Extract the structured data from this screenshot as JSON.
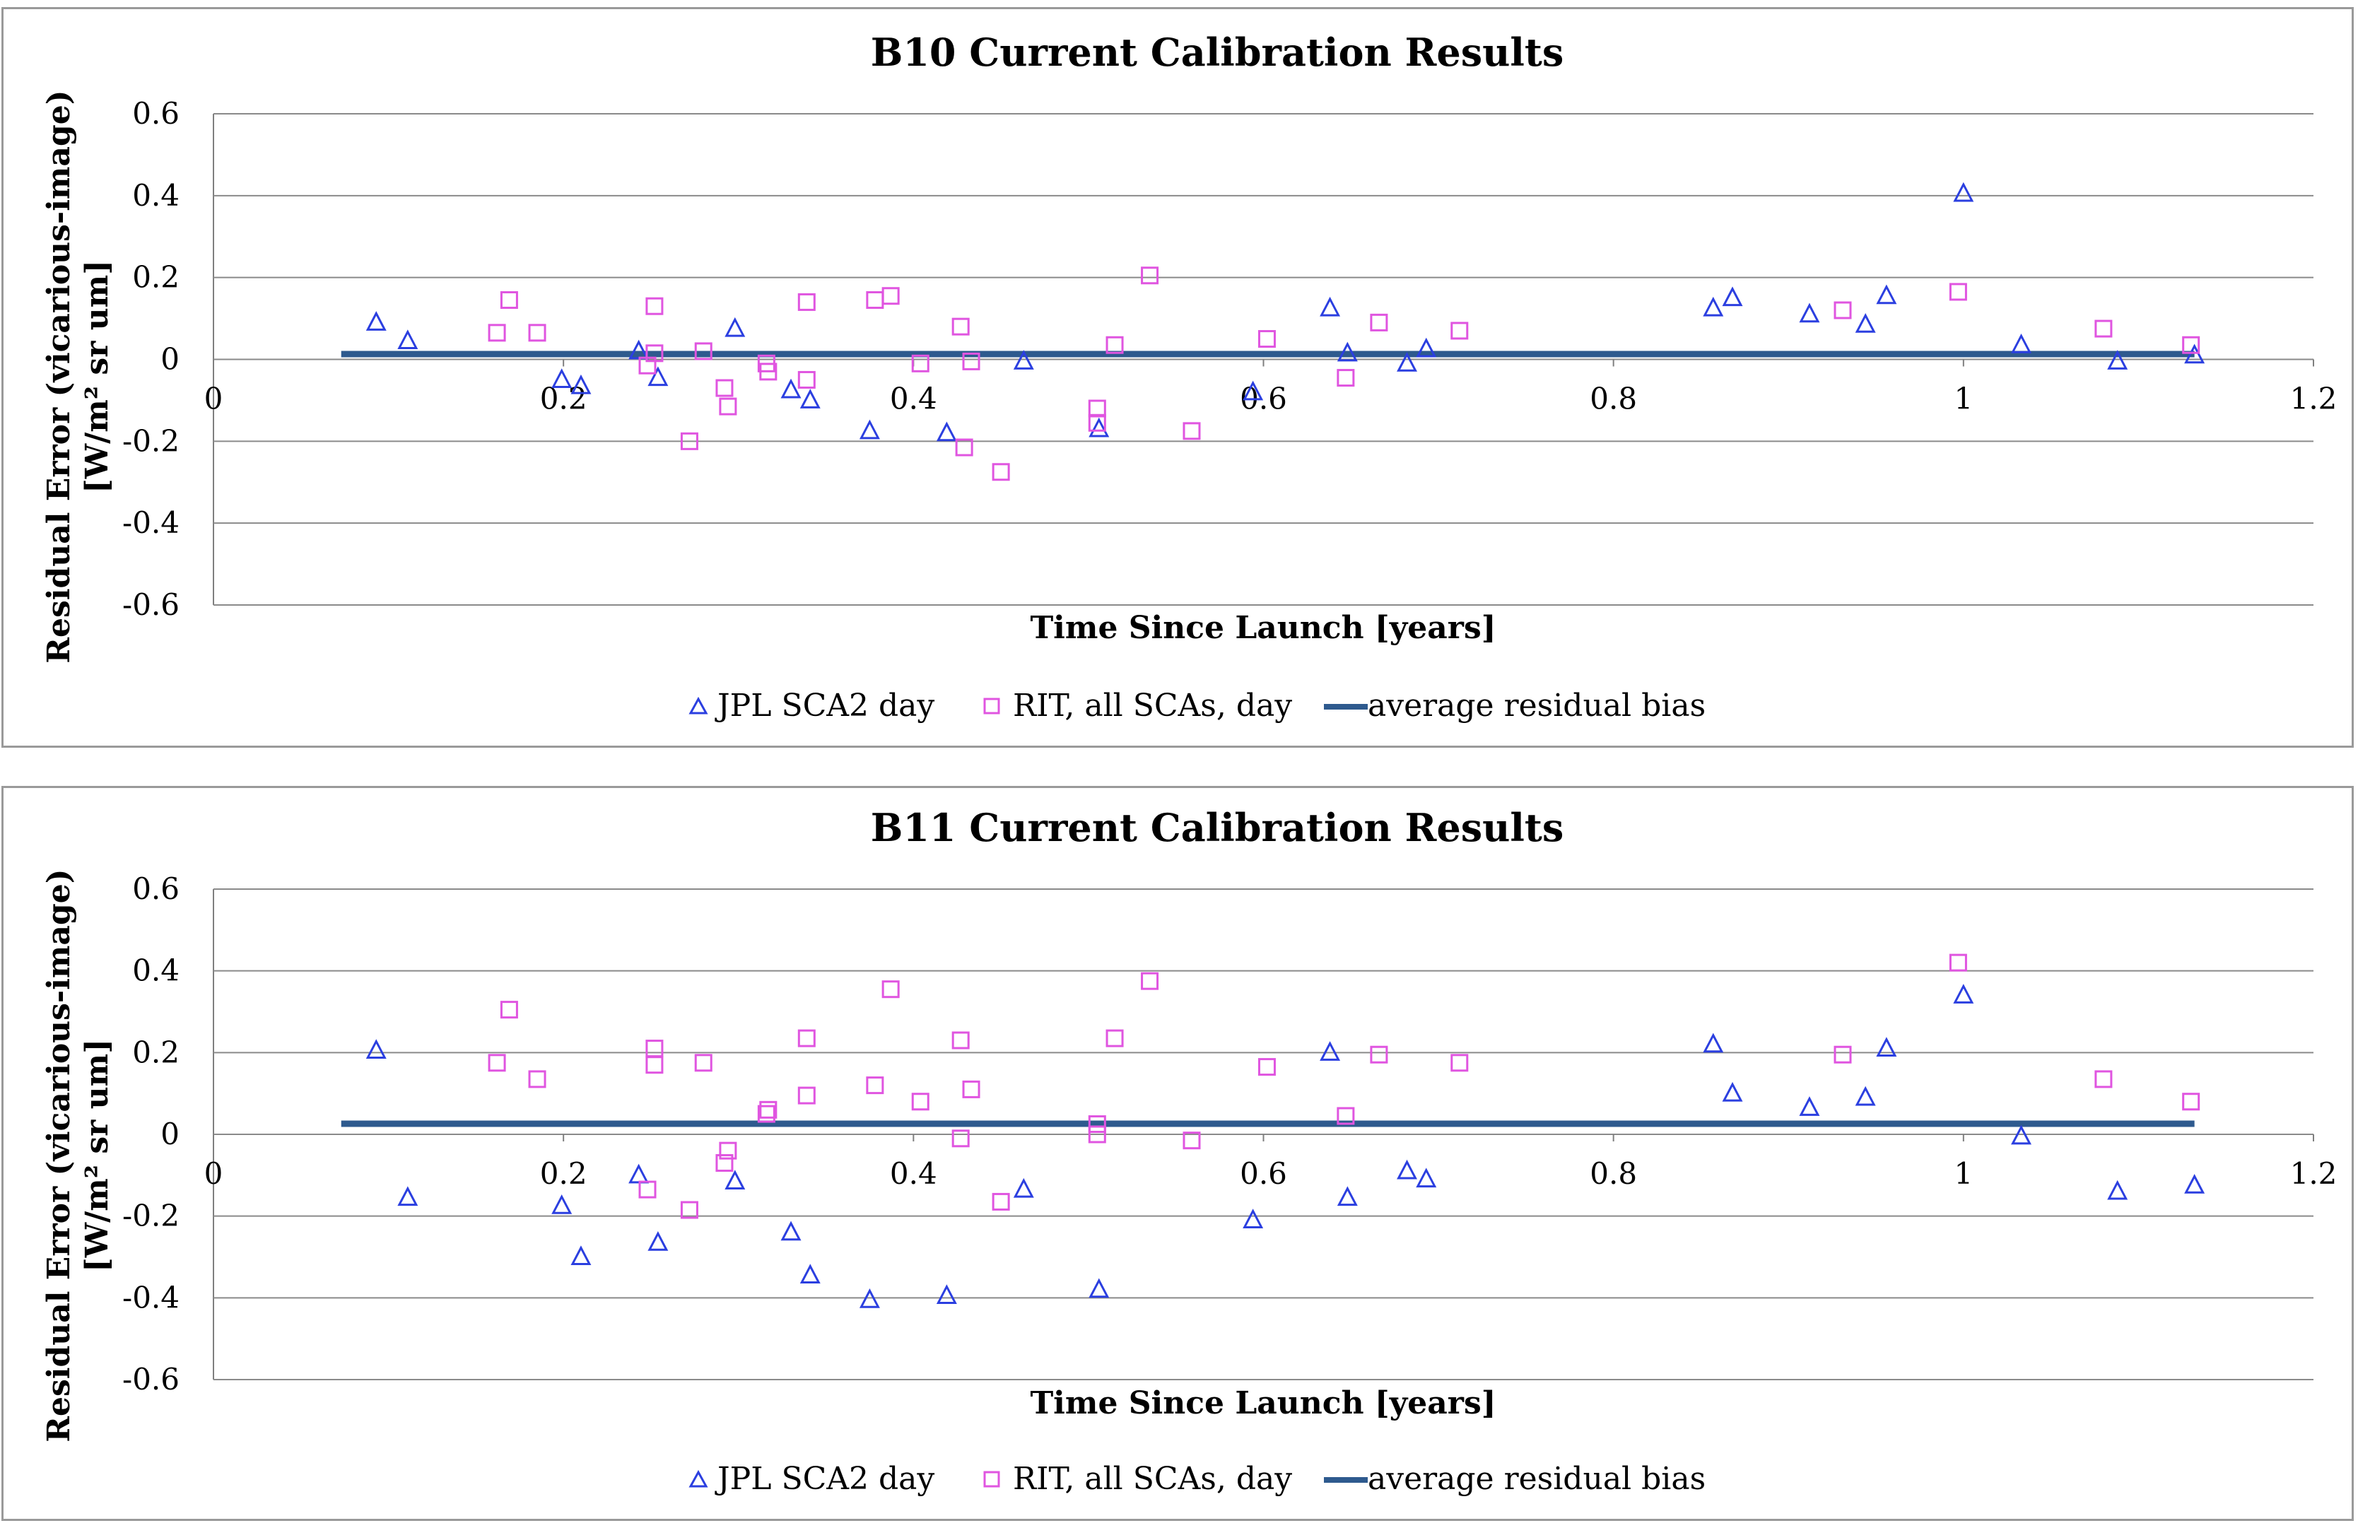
{
  "chart_data": [
    {
      "type": "scatter",
      "title": "B10 Current Calibration Results",
      "xlabel": "Time Since Launch [years]",
      "ylabel_line1": "Residual Error (vicarious-image)",
      "ylabel_line2": "[W/m² sr um]",
      "xlim": [
        0,
        1.2
      ],
      "ylim": [
        -0.6,
        0.6
      ],
      "x_ticks": [
        0,
        0.2,
        0.4,
        0.6,
        0.8,
        1,
        1.2
      ],
      "x_tick_labels": [
        "0",
        "0.2",
        "0.4",
        "0.6",
        "0.8",
        "1",
        "1.2"
      ],
      "y_ticks": [
        -0.6,
        -0.4,
        -0.2,
        0,
        0.2,
        0.4,
        0.6
      ],
      "y_tick_labels": [
        "-0.6",
        "-0.4",
        "-0.2",
        "0",
        "0.2",
        "0.4",
        "0.6"
      ],
      "grid": "horizontal",
      "legend_position": "bottom",
      "series": [
        {
          "name": "JPL SCA2 day",
          "marker": "triangle",
          "color": "#2b3fe0",
          "points": [
            [
              0.093,
              0.09
            ],
            [
              0.111,
              0.045
            ],
            [
              0.199,
              -0.05
            ],
            [
              0.21,
              -0.065
            ],
            [
              0.243,
              0.02
            ],
            [
              0.254,
              -0.045
            ],
            [
              0.298,
              0.075
            ],
            [
              0.33,
              -0.075
            ],
            [
              0.341,
              -0.1
            ],
            [
              0.375,
              -0.175
            ],
            [
              0.419,
              -0.18
            ],
            [
              0.463,
              -0.005
            ],
            [
              0.506,
              -0.17
            ],
            [
              0.594,
              -0.08
            ],
            [
              0.638,
              0.125
            ],
            [
              0.648,
              0.015
            ],
            [
              0.682,
              -0.01
            ],
            [
              0.693,
              0.025
            ],
            [
              0.857,
              0.125
            ],
            [
              0.868,
              0.15
            ],
            [
              0.912,
              0.11
            ],
            [
              0.944,
              0.085
            ],
            [
              0.956,
              0.155
            ],
            [
              1.0,
              0.405
            ],
            [
              1.033,
              0.035
            ],
            [
              1.088,
              -0.005
            ],
            [
              1.132,
              0.01
            ]
          ]
        },
        {
          "name": "RIT, all SCAs, day",
          "marker": "square",
          "color": "#e055e0",
          "points": [
            [
              0.162,
              0.065
            ],
            [
              0.169,
              0.145
            ],
            [
              0.185,
              0.065
            ],
            [
              0.248,
              -0.015
            ],
            [
              0.252,
              0.015
            ],
            [
              0.252,
              0.13
            ],
            [
              0.28,
              0.02
            ],
            [
              0.292,
              -0.07
            ],
            [
              0.294,
              -0.115
            ],
            [
              0.316,
              -0.01
            ],
            [
              0.317,
              -0.03
            ],
            [
              0.339,
              -0.05
            ],
            [
              0.339,
              0.14
            ],
            [
              0.378,
              0.145
            ],
            [
              0.387,
              0.155
            ],
            [
              0.404,
              -0.01
            ],
            [
              0.427,
              0.08
            ],
            [
              0.429,
              -0.215
            ],
            [
              0.433,
              -0.005
            ],
            [
              0.45,
              -0.275
            ],
            [
              0.272,
              -0.2
            ],
            [
              0.505,
              -0.155
            ],
            [
              0.505,
              -0.12
            ],
            [
              0.515,
              0.035
            ],
            [
              0.535,
              0.205
            ],
            [
              0.559,
              -0.175
            ],
            [
              0.602,
              0.05
            ],
            [
              0.647,
              -0.045
            ],
            [
              0.666,
              0.09
            ],
            [
              0.712,
              0.07
            ],
            [
              0.931,
              0.12
            ],
            [
              0.997,
              0.165
            ],
            [
              1.08,
              0.075
            ],
            [
              1.13,
              0.035
            ]
          ]
        },
        {
          "name": "average residual bias",
          "type": "line",
          "color": "#2e5a8e",
          "points": [
            [
              0.073,
              0.013
            ],
            [
              1.132,
              0.013
            ]
          ]
        }
      ]
    },
    {
      "type": "scatter",
      "title": "B11 Current Calibration Results",
      "xlabel": "Time Since Launch [years]",
      "ylabel_line1": "Residual Error (vicarious-image)",
      "ylabel_line2": "[W/m² sr um]",
      "xlim": [
        0,
        1.2
      ],
      "ylim": [
        -0.6,
        0.6
      ],
      "x_ticks": [
        0,
        0.2,
        0.4,
        0.6,
        0.8,
        1,
        1.2
      ],
      "x_tick_labels": [
        "0",
        "0.2",
        "0.4",
        "0.6",
        "0.8",
        "1",
        "1.2"
      ],
      "y_ticks": [
        -0.6,
        -0.4,
        -0.2,
        0,
        0.2,
        0.4,
        0.6
      ],
      "y_tick_labels": [
        "-0.6",
        "-0.4",
        "-0.2",
        "0",
        "0.2",
        "0.4",
        "0.6"
      ],
      "grid": "horizontal",
      "legend_position": "bottom",
      "series": [
        {
          "name": "JPL SCA2 day",
          "marker": "triangle",
          "color": "#2b3fe0",
          "points": [
            [
              0.093,
              0.205
            ],
            [
              0.111,
              -0.155
            ],
            [
              0.199,
              -0.175
            ],
            [
              0.21,
              -0.3
            ],
            [
              0.243,
              -0.1
            ],
            [
              0.254,
              -0.265
            ],
            [
              0.298,
              -0.115
            ],
            [
              0.33,
              -0.24
            ],
            [
              0.341,
              -0.345
            ],
            [
              0.375,
              -0.405
            ],
            [
              0.419,
              -0.395
            ],
            [
              0.463,
              -0.135
            ],
            [
              0.506,
              -0.38
            ],
            [
              0.594,
              -0.21
            ],
            [
              0.638,
              0.2
            ],
            [
              0.648,
              -0.155
            ],
            [
              0.682,
              -0.09
            ],
            [
              0.693,
              -0.11
            ],
            [
              0.857,
              0.22
            ],
            [
              0.868,
              0.1
            ],
            [
              0.912,
              0.065
            ],
            [
              0.944,
              0.09
            ],
            [
              0.956,
              0.21
            ],
            [
              1.0,
              0.34
            ],
            [
              1.033,
              -0.005
            ],
            [
              1.088,
              -0.14
            ],
            [
              1.132,
              -0.125
            ]
          ]
        },
        {
          "name": "RIT, all SCAs, day",
          "marker": "square",
          "color": "#e055e0",
          "points": [
            [
              0.162,
              0.175
            ],
            [
              0.169,
              0.305
            ],
            [
              0.185,
              0.135
            ],
            [
              0.248,
              -0.135
            ],
            [
              0.252,
              0.17
            ],
            [
              0.252,
              0.21
            ],
            [
              0.28,
              0.175
            ],
            [
              0.294,
              -0.04
            ],
            [
              0.292,
              -0.07
            ],
            [
              0.316,
              0.05
            ],
            [
              0.317,
              0.06
            ],
            [
              0.339,
              0.095
            ],
            [
              0.339,
              0.235
            ],
            [
              0.378,
              0.12
            ],
            [
              0.387,
              0.355
            ],
            [
              0.404,
              0.08
            ],
            [
              0.427,
              0.23
            ],
            [
              0.427,
              -0.01
            ],
            [
              0.433,
              0.11
            ],
            [
              0.45,
              -0.165
            ],
            [
              0.272,
              -0.185
            ],
            [
              0.505,
              0.0
            ],
            [
              0.505,
              0.025
            ],
            [
              0.515,
              0.235
            ],
            [
              0.535,
              0.375
            ],
            [
              0.559,
              -0.015
            ],
            [
              0.602,
              0.165
            ],
            [
              0.647,
              0.045
            ],
            [
              0.666,
              0.195
            ],
            [
              0.712,
              0.175
            ],
            [
              0.931,
              0.195
            ],
            [
              0.997,
              0.42
            ],
            [
              1.08,
              0.135
            ],
            [
              1.13,
              0.08
            ]
          ]
        },
        {
          "name": "average residual bias",
          "type": "line",
          "color": "#2e5a8e",
          "points": [
            [
              0.073,
              0.026
            ],
            [
              1.132,
              0.026
            ]
          ]
        }
      ]
    }
  ]
}
